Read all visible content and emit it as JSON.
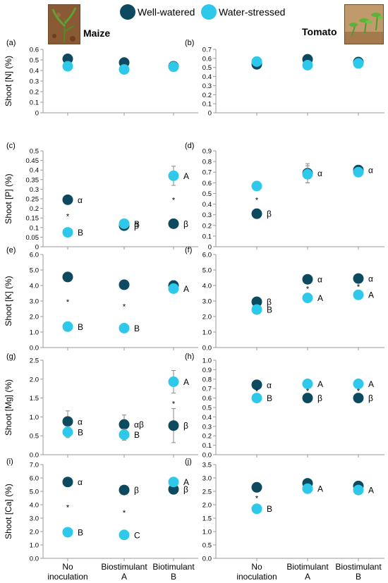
{
  "legend": {
    "well_label": "Well-watered",
    "stressed_label": "Water-stressed"
  },
  "colors": {
    "well": "#0d4a5f",
    "stressed": "#2ec8ea",
    "axis": "#999999",
    "text": "#000000"
  },
  "crops": {
    "maize": "Maize",
    "tomato": "Tomato"
  },
  "categories": {
    "maize": [
      [
        "No",
        "inoculation"
      ],
      [
        "Biostimulant",
        "A"
      ],
      [
        "Biotimulant",
        "B"
      ]
    ],
    "tomato": [
      [
        "No",
        "inoculation"
      ],
      [
        "Biotimulant",
        "A"
      ],
      [
        "Biostimulant",
        "B"
      ]
    ]
  },
  "chart_data": [
    {
      "panel": "(a)",
      "type": "scatter",
      "crop": "Maize",
      "ylabel": "Shoot [N] (%)",
      "ylim": [
        0,
        0.6
      ],
      "yticks": [
        "0",
        "0.1",
        "0.2",
        "0.3",
        "0.4",
        "0.5",
        "0.6"
      ],
      "series": [
        {
          "name": "Well-watered",
          "values": [
            0.51,
            0.475,
            0.44
          ],
          "errors": [
            0,
            0,
            0.03
          ],
          "letters": [
            "",
            "",
            ""
          ]
        },
        {
          "name": "Water-stressed",
          "values": [
            0.44,
            0.41,
            0.435
          ],
          "errors": [
            0,
            0,
            0.03
          ],
          "letters": [
            "",
            "",
            ""
          ]
        }
      ],
      "stars": [
        false,
        false,
        false
      ]
    },
    {
      "panel": "(b)",
      "type": "scatter",
      "crop": "Tomato",
      "ylabel": "",
      "ylim": [
        0,
        0.7
      ],
      "yticks": [
        "0",
        "0.1",
        "0.2",
        "0.3",
        "0.4",
        "0.5",
        "0.6",
        "0.7"
      ],
      "series": [
        {
          "name": "Well-watered",
          "values": [
            0.535,
            0.59,
            0.56
          ],
          "errors": [
            0.02,
            0,
            0
          ],
          "letters": [
            "",
            "",
            ""
          ]
        },
        {
          "name": "Water-stressed",
          "values": [
            0.565,
            0.525,
            0.545
          ],
          "errors": [
            0,
            0,
            0
          ],
          "letters": [
            "",
            "",
            ""
          ]
        }
      ],
      "stars": [
        false,
        false,
        false
      ]
    },
    {
      "panel": "(c)",
      "type": "scatter",
      "crop": "Maize",
      "ylabel": "Shoot [P] (%)",
      "ylim": [
        0,
        0.5
      ],
      "yticks": [
        "0",
        "0.05",
        "0.1",
        "0.15",
        "0.2",
        "0.25",
        "0.3",
        "0.35",
        "0.4",
        "0.45",
        "0.5"
      ],
      "series": [
        {
          "name": "Well-watered",
          "values": [
            0.245,
            0.11,
            0.12
          ],
          "errors": [
            0,
            0,
            0
          ],
          "letters": [
            "α",
            "β",
            "β"
          ]
        },
        {
          "name": "Water-stressed",
          "values": [
            0.075,
            0.12,
            0.37
          ],
          "errors": [
            0,
            0,
            0.05
          ],
          "letters": [
            "B",
            "B",
            "A"
          ]
        }
      ],
      "stars": [
        true,
        false,
        true
      ]
    },
    {
      "panel": "(d)",
      "type": "scatter",
      "crop": "Tomato",
      "ylabel": "",
      "ylim": [
        0,
        0.9
      ],
      "yticks": [
        "0",
        "0.1",
        "0.2",
        "0.3",
        "0.4",
        "0.5",
        "0.6",
        "0.7",
        "0.8",
        "0.9"
      ],
      "series": [
        {
          "name": "Well-watered",
          "values": [
            0.31,
            0.69,
            0.72
          ],
          "errors": [
            0,
            0.09,
            0
          ],
          "letters": [
            "β",
            "α",
            "α"
          ]
        },
        {
          "name": "Water-stressed",
          "values": [
            0.57,
            0.68,
            0.7
          ],
          "errors": [
            0,
            0.08,
            0
          ],
          "letters": [
            "",
            "",
            ""
          ]
        }
      ],
      "stars": [
        true,
        false,
        false
      ]
    },
    {
      "panel": "(e)",
      "type": "scatter",
      "crop": "Maize",
      "ylabel": "Shoot [K] (%)",
      "ylim": [
        0,
        6
      ],
      "yticks": [
        "0.0",
        "1.0",
        "2.0",
        "3.0",
        "4.0",
        "5.0",
        "6.0"
      ],
      "series": [
        {
          "name": "Well-watered",
          "values": [
            4.55,
            4.05,
            4.0
          ],
          "errors": [
            0,
            0,
            0.3
          ],
          "letters": [
            "",
            "",
            ""
          ]
        },
        {
          "name": "Water-stressed",
          "values": [
            1.35,
            1.25,
            3.8
          ],
          "errors": [
            0,
            0,
            0
          ],
          "letters": [
            "B",
            "B",
            "A"
          ]
        }
      ],
      "stars": [
        true,
        true,
        false
      ]
    },
    {
      "panel": "(f)",
      "type": "scatter",
      "crop": "Tomato",
      "ylabel": "",
      "ylim": [
        0,
        6
      ],
      "yticks": [
        "0.0",
        "1.0",
        "2.0",
        "3.0",
        "4.0",
        "5.0",
        "6.0"
      ],
      "series": [
        {
          "name": "Well-watered",
          "values": [
            2.95,
            4.4,
            4.45
          ],
          "errors": [
            0,
            0,
            0
          ],
          "letters": [
            "β",
            "α",
            "α"
          ]
        },
        {
          "name": "Water-stressed",
          "values": [
            2.45,
            3.2,
            3.4
          ],
          "errors": [
            0,
            0,
            0
          ],
          "letters": [
            "B",
            "A",
            "A"
          ]
        }
      ],
      "stars": [
        false,
        true,
        true
      ]
    },
    {
      "panel": "(g)",
      "type": "scatter",
      "crop": "Maize",
      "ylabel": "Shoot [Mg] (%)",
      "ylim": [
        0,
        2.5
      ],
      "yticks": [
        "0.0",
        "0.5",
        "1.0",
        "1.5",
        "2.0",
        "2.5"
      ],
      "series": [
        {
          "name": "Well-watered",
          "values": [
            0.88,
            0.8,
            0.77
          ],
          "errors": [
            0.28,
            0.25,
            0.45
          ],
          "letters": [
            "α",
            "αβ",
            "β"
          ]
        },
        {
          "name": "Water-stressed",
          "values": [
            0.6,
            0.53,
            1.93
          ],
          "errors": [
            0.15,
            0.15,
            0.3
          ],
          "letters": [
            "B",
            "B",
            "A"
          ]
        }
      ],
      "stars": [
        false,
        false,
        true
      ]
    },
    {
      "panel": "(h)",
      "type": "scatter",
      "crop": "Tomato",
      "ylabel": "",
      "ylim": [
        0,
        1
      ],
      "yticks": [
        "0.0",
        "0.1",
        "0.2",
        "0.3",
        "0.4",
        "0.5",
        "0.6",
        "0.7",
        "0.8",
        "0.9",
        "1.0"
      ],
      "series": [
        {
          "name": "Well-watered",
          "values": [
            0.74,
            0.6,
            0.6
          ],
          "errors": [
            0,
            0,
            0
          ],
          "letters": [
            "α",
            "β",
            "β"
          ]
        },
        {
          "name": "Water-stressed",
          "values": [
            0.6,
            0.75,
            0.75
          ],
          "errors": [
            0,
            0,
            0
          ],
          "letters": [
            "B",
            "A",
            "A"
          ]
        }
      ],
      "stars": [
        true,
        true,
        true
      ]
    },
    {
      "panel": "(i)",
      "type": "scatter",
      "crop": "Maize",
      "ylabel": "Shoot [Ca] (%)",
      "ylim": [
        0,
        7
      ],
      "yticks": [
        "0.0",
        "1.0",
        "2.0",
        "3.0",
        "4.0",
        "5.0",
        "6.0",
        "7.0"
      ],
      "series": [
        {
          "name": "Well-watered",
          "values": [
            5.7,
            5.1,
            5.15
          ],
          "errors": [
            0,
            0,
            0
          ],
          "letters": [
            "α",
            "β",
            "β"
          ]
        },
        {
          "name": "Water-stressed",
          "values": [
            1.95,
            1.75,
            5.7
          ],
          "errors": [
            0,
            0,
            0
          ],
          "letters": [
            "B",
            "C",
            "A"
          ]
        }
      ],
      "stars": [
        true,
        true,
        false
      ]
    },
    {
      "panel": "(j)",
      "type": "scatter",
      "crop": "Tomato",
      "ylabel": "",
      "ylim": [
        0,
        3.5
      ],
      "yticks": [
        "0.0",
        "0.5",
        "1.0",
        "1.5",
        "2.0",
        "2.5",
        "3.0",
        "3.5"
      ],
      "series": [
        {
          "name": "Well-watered",
          "values": [
            2.65,
            2.8,
            2.7
          ],
          "errors": [
            0,
            0,
            0
          ],
          "letters": [
            "",
            "",
            ""
          ]
        },
        {
          "name": "Water-stressed",
          "values": [
            1.85,
            2.6,
            2.55
          ],
          "errors": [
            0,
            0,
            0
          ],
          "letters": [
            "B",
            "A",
            "A"
          ]
        }
      ],
      "stars": [
        true,
        false,
        false
      ]
    }
  ]
}
